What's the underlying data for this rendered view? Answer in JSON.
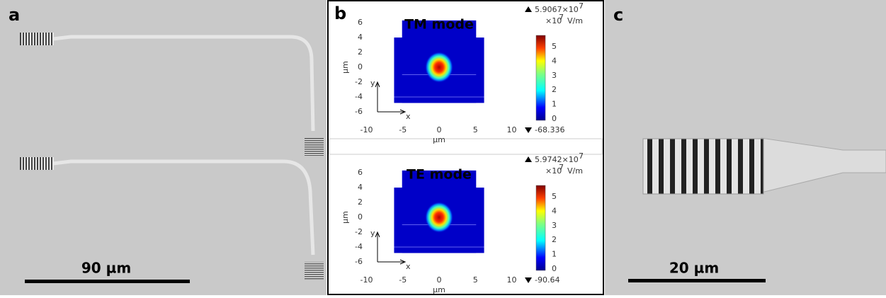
{
  "panels": [
    {
      "label": "a",
      "scale_bar": "90 µm"
    },
    {
      "label": "b",
      "plots": [
        {
          "title": "TM mode",
          "max": "5.9067×10",
          "max_exp": "7",
          "unit_prefix": "×10",
          "unit_exp": "7",
          "unit": "V/m",
          "min": "-68.336",
          "yticks": [
            "6",
            "4",
            "2",
            "0",
            "-2",
            "-4",
            "-6"
          ],
          "xticks": [
            "-10",
            "-5",
            "0",
            "5",
            "10"
          ],
          "cbar_ticks": [
            "5",
            "4",
            "3",
            "2",
            "1",
            "0"
          ],
          "xlabel": "µm",
          "ylabel": "µm",
          "axis_y": "y",
          "axis_x": "x"
        },
        {
          "title": "TE mode",
          "max": "5.9742×10",
          "max_exp": "7",
          "unit_prefix": "×10",
          "unit_exp": "7",
          "unit": "V/m",
          "min": "-90.64",
          "yticks": [
            "6",
            "4",
            "2",
            "0",
            "-2",
            "-4",
            "-6"
          ],
          "xticks": [
            "-10",
            "-5",
            "0",
            "5",
            "10"
          ],
          "cbar_ticks": [
            "5",
            "4",
            "3",
            "2",
            "1",
            "0"
          ],
          "xlabel": "µm",
          "ylabel": "µm",
          "axis_y": "y",
          "axis_x": "x"
        }
      ]
    },
    {
      "label": "c",
      "scale_bar": "20 µm"
    }
  ]
}
